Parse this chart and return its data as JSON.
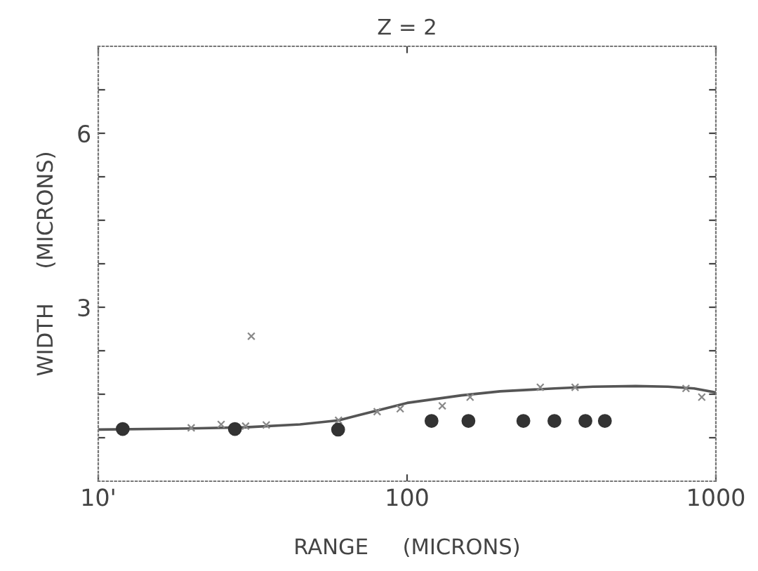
{
  "chart_data": {
    "type": "line",
    "title": "Z = 2",
    "xlabel": "RANGE     (MICRONS)",
    "ylabel": "WIDTH     (MICRONS)",
    "log": "x",
    "xlim": [
      10,
      1000
    ],
    "xticks": [
      {
        "value": 10,
        "label": "10'"
      },
      100,
      1000
    ],
    "ylim": [
      0,
      7.5
    ],
    "yticks": [
      {
        "value": 0.75,
        "label": null
      },
      {
        "value": 1.5,
        "label": null
      },
      {
        "value": 2.25,
        "label": null
      },
      3,
      {
        "value": 3.75,
        "label": null
      },
      {
        "value": 4.5,
        "label": null
      },
      {
        "value": 5.25,
        "label": null
      },
      6,
      {
        "value": 6.75,
        "label": null
      }
    ],
    "grid": false,
    "series": [
      {
        "color": "#555555",
        "marker": "none",
        "line_style": "solid",
        "x": [
          10,
          20,
          30,
          45,
          60,
          80,
          100,
          150,
          200,
          300,
          400,
          550,
          700,
          850,
          1000
        ],
        "values": [
          0.89,
          0.91,
          0.93,
          0.98,
          1.05,
          1.22,
          1.35,
          1.48,
          1.55,
          1.6,
          1.63,
          1.64,
          1.63,
          1.6,
          1.53
        ]
      },
      {
        "type": "scatter",
        "color": "#888888",
        "marker": "cross",
        "x": [
          20,
          25,
          30,
          35,
          60,
          80,
          95,
          130,
          160,
          270,
          350,
          800,
          900,
          31.3
        ],
        "values": [
          0.92,
          0.98,
          0.95,
          0.97,
          1.05,
          1.2,
          1.25,
          1.3,
          1.45,
          1.62,
          1.62,
          1.6,
          1.45,
          2.5
        ]
      },
      {
        "type": "scatter",
        "color": "#333333",
        "marker": "circle",
        "x": [
          12,
          27.7,
          59.8,
          120,
          158,
          238,
          300,
          378,
          437
        ],
        "values": [
          0.9,
          0.9,
          0.89,
          1.04,
          1.04,
          1.04,
          1.04,
          1.04,
          1.04
        ]
      }
    ]
  }
}
